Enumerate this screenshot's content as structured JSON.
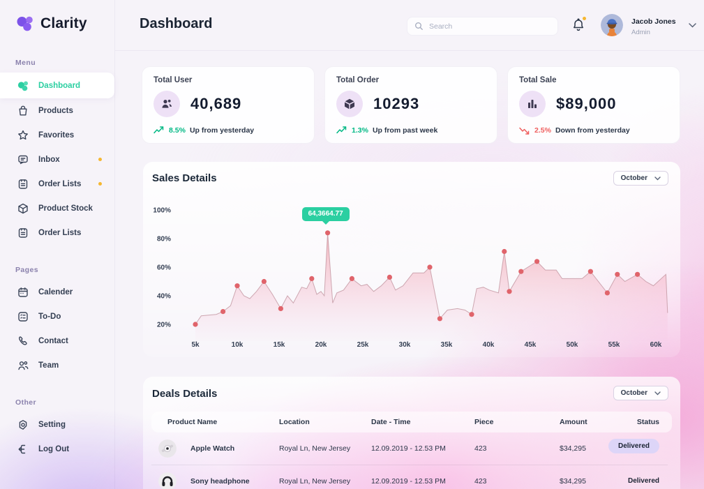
{
  "app": {
    "brand": "Clarity"
  },
  "header": {
    "title": "Dashboard",
    "search_placeholder": "Search",
    "icons": [
      "search-icon",
      "bell-icon",
      "chevron-down-icon"
    ],
    "user": {
      "name": "Jacob Jones",
      "role": "Admin"
    }
  },
  "sidebar": {
    "menu_label": "Menu",
    "menu": [
      {
        "label": "Dashboard",
        "icon": "dashboard-blob-icon",
        "active": true
      },
      {
        "label": "Products",
        "icon": "bag-icon"
      },
      {
        "label": "Favorites",
        "icon": "star-icon"
      },
      {
        "label": "Inbox",
        "icon": "chat-icon",
        "dot": true
      },
      {
        "label": "Order Lists",
        "icon": "clipboard-icon",
        "dot": true
      },
      {
        "label": "Product Stock",
        "icon": "cube-outline-icon"
      },
      {
        "label": "Order Lists",
        "icon": "clipboard-icon"
      }
    ],
    "pages_label": "Pages",
    "pages": [
      {
        "label": "Calender",
        "icon": "calendar-icon"
      },
      {
        "label": "To-Do",
        "icon": "todo-icon"
      },
      {
        "label": "Contact",
        "icon": "phone-icon"
      },
      {
        "label": "Team",
        "icon": "team-icon"
      }
    ],
    "other_label": "Other",
    "other": [
      {
        "label": "Setting",
        "icon": "gear-icon"
      },
      {
        "label": "Log Out",
        "icon": "logout-icon"
      }
    ]
  },
  "stats": [
    {
      "title": "Total User",
      "value": "40,689",
      "icon": "users-icon",
      "trend": "up",
      "trend_pct": "8.5%",
      "trend_text": "Up from yesterday"
    },
    {
      "title": "Total Order",
      "value": "10293",
      "icon": "cube-icon",
      "trend": "up",
      "trend_pct": "1.3%",
      "trend_text": "Up from past week"
    },
    {
      "title": "Total Sale",
      "value": "$89,000",
      "icon": "bar-chart-icon",
      "trend": "down",
      "trend_pct": "2.5%",
      "trend_text": "Down from yesterday"
    }
  ],
  "sales": {
    "title": "Sales Details",
    "period": "October"
  },
  "chart_data": {
    "type": "area",
    "title": "Sales Details",
    "xlabel": "",
    "ylabel": "",
    "grid": false,
    "legend": false,
    "xlim": [
      5,
      62
    ],
    "ylim": [
      0,
      100
    ],
    "xticks": [
      "5k",
      "10k",
      "15k",
      "20k",
      "25k",
      "30k",
      "35k",
      "40k",
      "45k",
      "50k",
      "55k",
      "60k"
    ],
    "xtick_values": [
      5,
      10,
      15,
      20,
      25,
      30,
      35,
      40,
      45,
      50,
      55,
      60
    ],
    "yticks": [
      "20%",
      "40%",
      "60%",
      "80%",
      "100%"
    ],
    "ytick_values": [
      20,
      40,
      60,
      80,
      100
    ],
    "series": [
      {
        "name": "Sales",
        "points": [
          [
            5,
            20,
            1
          ],
          [
            5.7,
            26,
            0
          ],
          [
            7.5,
            27,
            0
          ],
          [
            8.3,
            29,
            1
          ],
          [
            9.2,
            33,
            0
          ],
          [
            10,
            47,
            1
          ],
          [
            10.8,
            40,
            0
          ],
          [
            11.5,
            38,
            0
          ],
          [
            12.3,
            43,
            0
          ],
          [
            13.2,
            50,
            1
          ],
          [
            14.2,
            41,
            0
          ],
          [
            15.2,
            31,
            1
          ],
          [
            16,
            40,
            0
          ],
          [
            16.7,
            35,
            0
          ],
          [
            17.7,
            46,
            0
          ],
          [
            18.3,
            45,
            0
          ],
          [
            18.9,
            52,
            1
          ],
          [
            19.5,
            41,
            0
          ],
          [
            20,
            43,
            0
          ],
          [
            20.4,
            40,
            0
          ],
          [
            20.8,
            84,
            1
          ],
          [
            21.4,
            35,
            0
          ],
          [
            21.9,
            42,
            0
          ],
          [
            22.7,
            44,
            0
          ],
          [
            23.7,
            52,
            1
          ],
          [
            24.8,
            47,
            0
          ],
          [
            25.5,
            48,
            0
          ],
          [
            26.3,
            43,
            0
          ],
          [
            27.2,
            47,
            0
          ],
          [
            28.2,
            53,
            1
          ],
          [
            28.9,
            44,
            0
          ],
          [
            29.8,
            47,
            0
          ],
          [
            31,
            56,
            0
          ],
          [
            32.3,
            56,
            0
          ],
          [
            33,
            60,
            1
          ],
          [
            34.2,
            24,
            1
          ],
          [
            35.1,
            30,
            0
          ],
          [
            36.3,
            31,
            0
          ],
          [
            37.2,
            30,
            0
          ],
          [
            38,
            27,
            1
          ],
          [
            38.6,
            45,
            0
          ],
          [
            39.4,
            46,
            0
          ],
          [
            40.1,
            44,
            0
          ],
          [
            41.2,
            42,
            0
          ],
          [
            41.9,
            71,
            1
          ],
          [
            42.5,
            43,
            1
          ],
          [
            43.9,
            57,
            1
          ],
          [
            45.8,
            64,
            1
          ],
          [
            46.8,
            58,
            0
          ],
          [
            48.1,
            58,
            0
          ],
          [
            48.8,
            52,
            0
          ],
          [
            51.2,
            52,
            0
          ],
          [
            52.2,
            57,
            1
          ],
          [
            54.2,
            42,
            1
          ],
          [
            55.4,
            55,
            1
          ],
          [
            56.3,
            50,
            0
          ],
          [
            57.8,
            55,
            1
          ],
          [
            58.8,
            50,
            0
          ],
          [
            59.7,
            47,
            0
          ],
          [
            61.2,
            55,
            0
          ],
          [
            61.4,
            28,
            0
          ]
        ]
      }
    ],
    "tooltip": {
      "x": 20.8,
      "y": 84,
      "label": "64,3664.77"
    },
    "colors": {
      "line": "#c59aa5",
      "dot": "#e0646b",
      "fill_top": "rgba(238,120,130,0.50)",
      "fill_bottom": "rgba(240,160,200,0.02)",
      "tooltip_bg": "#2bcfa1"
    }
  },
  "deals": {
    "title": "Deals Details",
    "period": "October",
    "columns": [
      "Product Name",
      "Location",
      "Date - Time",
      "Piece",
      "Amount",
      "Status"
    ],
    "rows": [
      {
        "product": "Apple Watch",
        "image": "apple-watch-photo",
        "location": "Royal Ln, New Jersey",
        "datetime": "12.09.2019 - 12.53 PM",
        "piece": "423",
        "amount": "$34,295",
        "status": "Delivered"
      },
      {
        "product": "Sony headphone",
        "image": "sony-headphone-photo",
        "location": "Royal Ln, New Jersey",
        "datetime": "12.09.2019 - 12.53 PM",
        "piece": "423",
        "amount": "$34,295",
        "status": "Delivered"
      }
    ]
  },
  "colors": {
    "brand_purple": "#7c52e8",
    "accent_teal": "#2bcfa1",
    "trend_green": "#00b884",
    "trend_red": "#ef5f5f",
    "notification_yellow": "#f5b731",
    "badge_lavender": "#ddd5f8",
    "background": "#f6f3f9"
  }
}
